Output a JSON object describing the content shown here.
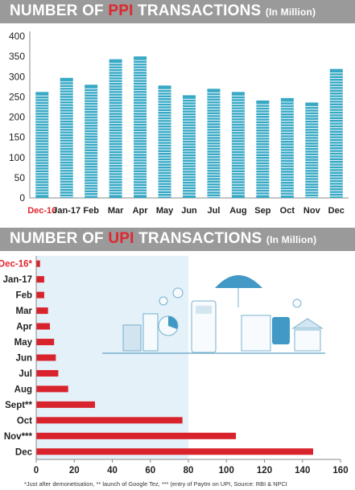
{
  "charts_header": [
    {
      "title_pre": "NUMBER  OF ",
      "title_hl": "PPI",
      "title_post": " TRANSACTIONS ",
      "unit": "(In Million)"
    },
    {
      "title_pre": "NUMBER  OF ",
      "title_hl": "UPI",
      "title_post": " TRANSACTIONS ",
      "unit": "(In Million)"
    }
  ],
  "footnote": "*Just after demonetisation,  ** launch of Google Tez,  *** (entry of Paytm on UPI, Source: RBI & NPCI",
  "colors": {
    "ppi_bar": "#37a9c5",
    "upi_bar": "#d9232c",
    "highlight": "#e0262e",
    "banner": "#9a9a9a",
    "upi_bg": "#e4f1f9"
  },
  "chart_data": [
    {
      "type": "bar",
      "title": "NUMBER OF PPI TRANSACTIONS (In Million)",
      "categories": [
        "Dec-16",
        "Jan-17",
        "Feb",
        "Mar",
        "Apr",
        "May",
        "Jun",
        "Jul",
        "Aug",
        "Sep",
        "Oct",
        "Nov",
        "Dec"
      ],
      "values": [
        262,
        297,
        280,
        343,
        350,
        278,
        254,
        270,
        262,
        241,
        247,
        236,
        319
      ],
      "ylim": [
        0,
        400
      ],
      "yticks": [
        0,
        50,
        100,
        150,
        200,
        250,
        300,
        350,
        400
      ],
      "highlight_category": "Dec-16",
      "grid": false
    },
    {
      "type": "bar",
      "orientation": "horizontal",
      "title": "NUMBER OF UPI TRANSACTIONS (In Million)",
      "categories": [
        "Dec-16*",
        "Jan-17",
        "Feb",
        "Mar",
        "Apr",
        "May",
        "Jun",
        "Jul",
        "Aug",
        "Sept**",
        "Oct",
        "Nov***",
        "Dec"
      ],
      "values": [
        2,
        4.2,
        4.2,
        6.2,
        7.2,
        9.4,
        10.3,
        11.6,
        16.8,
        30.9,
        76.9,
        105,
        145.6
      ],
      "xlim": [
        0,
        160
      ],
      "xticks": [
        0,
        20,
        40,
        60,
        80,
        100,
        120,
        140,
        160
      ],
      "highlight_category": "Dec-16*",
      "grid": false
    }
  ]
}
